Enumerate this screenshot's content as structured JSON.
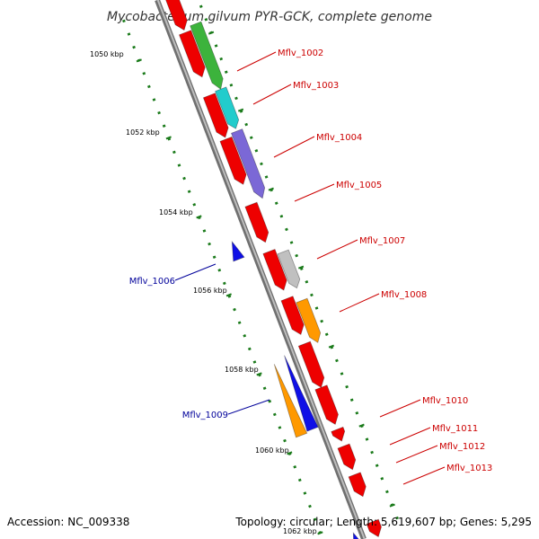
{
  "title": "Mycobacterium gilvum PYR-GCK, complete genome",
  "footer": {
    "accession": "Accession: NC_009338",
    "topology": "Topology: circular; Length: 5,619,607 bp; Genes: 5,295"
  },
  "colors": {
    "backbone": "#888888",
    "tick": "#1a7a1a",
    "red_gene": "#ee0000",
    "label_forward": "#cc0000",
    "label_reverse": "#00009a"
  },
  "ticks": [
    {
      "label": "1050 kbp"
    },
    {
      "label": "1052 kbp"
    },
    {
      "label": "1054 kbp"
    },
    {
      "label": "1056 kbp"
    },
    {
      "label": "1058 kbp"
    },
    {
      "label": "1060 kbp"
    },
    {
      "label": "1062 kbp"
    }
  ],
  "genes": [
    {
      "name": "Mflv_1002",
      "color": "#3cb33c",
      "strand": "forward",
      "labeled": true
    },
    {
      "name": "Mflv_1003",
      "color": "#22cccc",
      "strand": "forward",
      "labeled": true
    },
    {
      "name": "Mflv_1004",
      "color": "#7b68d6",
      "strand": "forward",
      "labeled": true
    },
    {
      "name": "Mflv_1005",
      "color": "#ee0000",
      "strand": "forward",
      "labeled": true
    },
    {
      "name": "Mflv_1006",
      "color": "#1010e6",
      "strand": "reverse",
      "labeled": true
    },
    {
      "name": "Mflv_1007",
      "color": "#c0c0c0",
      "strand": "forward",
      "labeled": true
    },
    {
      "name": "Mflv_1008",
      "color": "#ff9900",
      "strand": "forward",
      "labeled": true
    },
    {
      "name": "Mflv_1009",
      "color": "#ff9900",
      "strand": "reverse",
      "labeled": true
    },
    {
      "name": "",
      "color": "#1010e6",
      "strand": "reverse",
      "labeled": false
    },
    {
      "name": "Mflv_1010",
      "color": "#ee0000",
      "strand": "forward",
      "labeled": true
    },
    {
      "name": "Mflv_1011",
      "color": "#ee0000",
      "strand": "forward",
      "labeled": true
    },
    {
      "name": "Mflv_1012",
      "color": "#ee0000",
      "strand": "forward",
      "labeled": true
    },
    {
      "name": "Mflv_1013",
      "color": "#ee0000",
      "strand": "forward",
      "labeled": true
    }
  ]
}
